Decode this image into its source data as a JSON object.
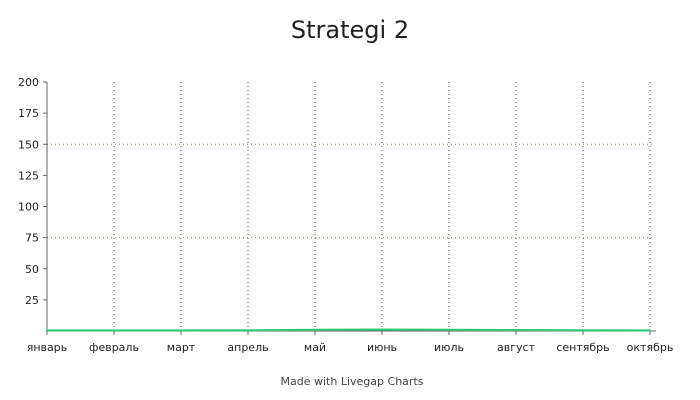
{
  "chart_data": {
    "type": "line",
    "title": "Strategi 2",
    "xlabel": "",
    "ylabel": "",
    "categories": [
      "январь",
      "февраль",
      "март",
      "апрель",
      "май",
      "июнь",
      "июль",
      "август",
      "сентябрь",
      "октябрь"
    ],
    "series": [
      {
        "values": [
          0.5,
          0.5,
          0.5,
          0.6,
          1.0,
          1.2,
          1.0,
          0.8,
          0.6,
          0.5
        ],
        "color": "#2ecc71"
      }
    ],
    "ylim": [
      0,
      200
    ],
    "yticks": [
      25,
      50,
      75,
      100,
      125,
      150,
      175,
      200
    ],
    "grid": {
      "y_values": [
        75,
        150
      ],
      "x": true,
      "style": "dotted"
    },
    "credit": "Made with Livegap Charts"
  }
}
